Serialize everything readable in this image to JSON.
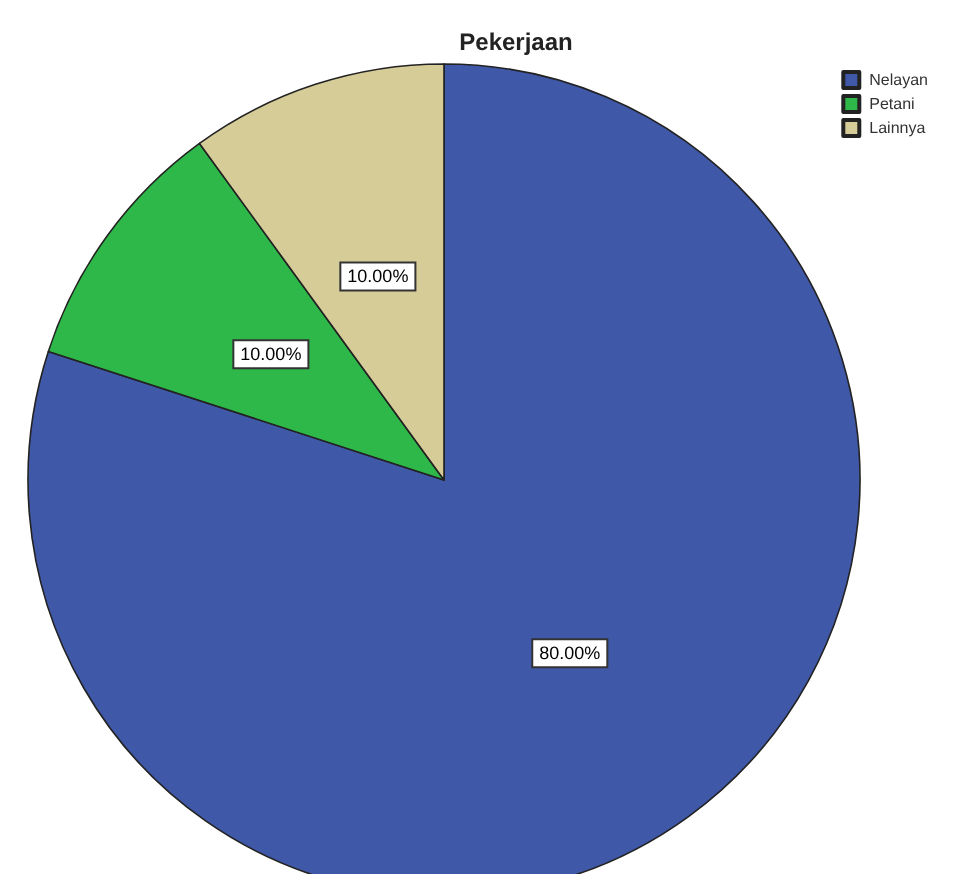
{
  "chart_data": {
    "type": "pie",
    "title": "Pekerjaan",
    "categories": [
      "Nelayan",
      "Petani",
      "Lainnya"
    ],
    "values": [
      80,
      10,
      10
    ],
    "colors": [
      "#3f58a8",
      "#2fb84a",
      "#d6cc98"
    ],
    "value_labels": [
      "80.00%",
      "10.00%",
      "10.00%"
    ],
    "legend": "top right"
  }
}
